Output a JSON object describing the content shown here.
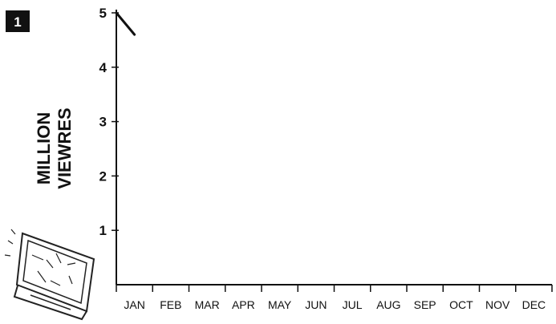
{
  "badge": "1",
  "chart_data": {
    "type": "line",
    "ylabel_lines": [
      "MILLION",
      "VIEWRES"
    ],
    "categories": [
      "JAN",
      "FEB",
      "MAR",
      "APR",
      "MAY",
      "JUN",
      "JUL",
      "AUG",
      "SEP",
      "OCT",
      "NOV",
      "DEC"
    ],
    "yticks": [
      1,
      2,
      3,
      4,
      5
    ],
    "ylim": [
      0,
      5
    ],
    "grid": false,
    "series": [
      {
        "x": [
          0,
          0.5
        ],
        "values": [
          5.0,
          4.6
        ],
        "color": "#111111"
      }
    ]
  }
}
